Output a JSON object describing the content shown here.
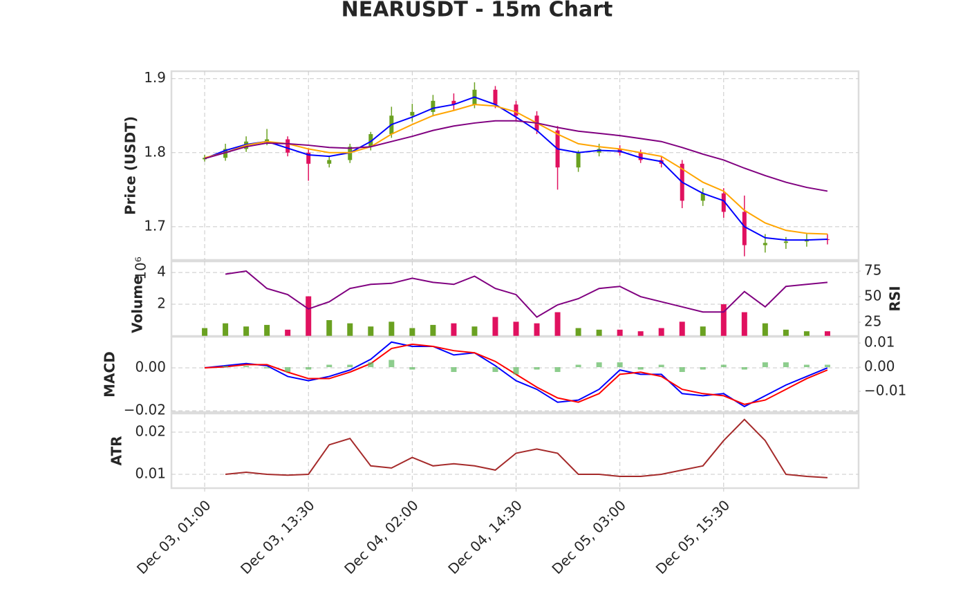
{
  "chart_data": [
    {
      "type": "candlestick",
      "title": "NEARUSDT - 15m Chart",
      "ylabel": "Price (USDT)",
      "x": [
        0,
        10,
        20,
        30,
        40,
        50,
        60,
        70,
        80,
        90,
        100,
        110,
        120,
        130,
        140,
        150,
        160,
        170,
        180,
        190,
        200,
        210,
        220,
        230,
        240,
        250,
        260,
        270,
        280,
        290,
        300
      ],
      "open": [
        1.791,
        1.793,
        1.805,
        1.815,
        1.818,
        1.8,
        1.785,
        1.79,
        1.808,
        1.825,
        1.85,
        1.855,
        1.87,
        1.865,
        1.885,
        1.865,
        1.85,
        1.83,
        1.78,
        1.8,
        1.805,
        1.8,
        1.79,
        1.785,
        1.735,
        1.745,
        1.72,
        1.675,
        1.678,
        1.68,
        1.683
      ],
      "high": [
        1.797,
        1.812,
        1.822,
        1.832,
        1.822,
        1.806,
        1.796,
        1.812,
        1.828,
        1.862,
        1.866,
        1.878,
        1.88,
        1.895,
        1.89,
        1.87,
        1.856,
        1.836,
        1.803,
        1.812,
        1.81,
        1.804,
        1.795,
        1.79,
        1.752,
        1.752,
        1.742,
        1.69,
        1.686,
        1.69,
        1.69
      ],
      "low": [
        1.788,
        1.789,
        1.801,
        1.81,
        1.795,
        1.762,
        1.78,
        1.786,
        1.803,
        1.82,
        1.842,
        1.849,
        1.858,
        1.86,
        1.86,
        1.842,
        1.825,
        1.75,
        1.774,
        1.795,
        1.796,
        1.786,
        1.78,
        1.725,
        1.728,
        1.712,
        1.66,
        1.665,
        1.67,
        1.673,
        1.676
      ],
      "close": [
        1.793,
        1.805,
        1.815,
        1.818,
        1.8,
        1.785,
        1.79,
        1.808,
        1.825,
        1.85,
        1.855,
        1.87,
        1.865,
        1.885,
        1.865,
        1.85,
        1.83,
        1.78,
        1.8,
        1.805,
        1.8,
        1.79,
        1.785,
        1.735,
        1.745,
        1.72,
        1.675,
        1.678,
        1.68,
        1.683,
        1.682
      ],
      "up_color": "#6aa121",
      "down_color": "#e0115f",
      "series": [
        {
          "color": "#0000ff",
          "values": [
            1.792,
            1.803,
            1.811,
            1.815,
            1.806,
            1.797,
            1.795,
            1.8,
            1.815,
            1.838,
            1.848,
            1.86,
            1.865,
            1.875,
            1.865,
            1.848,
            1.83,
            1.805,
            1.8,
            1.803,
            1.802,
            1.793,
            1.788,
            1.76,
            1.745,
            1.735,
            1.7,
            1.685,
            1.682,
            1.682,
            1.683
          ]
        },
        {
          "color": "#ffa500",
          "values": [
            1.793,
            1.8,
            1.81,
            1.815,
            1.812,
            1.805,
            1.8,
            1.8,
            1.808,
            1.825,
            1.838,
            1.85,
            1.857,
            1.865,
            1.863,
            1.855,
            1.84,
            1.825,
            1.812,
            1.808,
            1.805,
            1.8,
            1.795,
            1.778,
            1.76,
            1.748,
            1.722,
            1.705,
            1.695,
            1.691,
            1.69
          ]
        },
        {
          "color": "#800080",
          "values": [
            1.792,
            1.8,
            1.808,
            1.813,
            1.812,
            1.81,
            1.807,
            1.806,
            1.808,
            1.815,
            1.822,
            1.83,
            1.836,
            1.84,
            1.843,
            1.843,
            1.84,
            1.834,
            1.829,
            1.826,
            1.823,
            1.819,
            1.815,
            1.807,
            1.798,
            1.79,
            1.779,
            1.769,
            1.76,
            1.753,
            1.748
          ]
        }
      ],
      "ylim": [
        1.655,
        1.91
      ],
      "yticks": [
        1.7,
        1.8,
        1.9
      ],
      "grid": true
    },
    {
      "type": "bar",
      "ylabel": "Volume",
      "y_offset_label": "10⁶",
      "y2label": "RSI",
      "values": [
        0.5,
        0.8,
        0.6,
        0.7,
        0.4,
        2.5,
        1.0,
        0.8,
        0.6,
        0.9,
        0.5,
        0.7,
        0.8,
        0.6,
        1.2,
        0.9,
        0.8,
        1.5,
        0.5,
        0.4,
        0.4,
        0.3,
        0.5,
        0.9,
        0.6,
        2.0,
        1.5,
        0.8,
        0.4,
        0.3,
        0.3
      ],
      "up_color": "#6aa121",
      "down_color": "#e0115f",
      "series": [
        {
          "color": "#800080",
          "axis": "y2",
          "values": [
            null,
            72,
            75,
            58,
            52,
            38,
            45,
            58,
            62,
            63,
            68,
            64,
            62,
            70,
            58,
            52,
            30,
            42,
            48,
            58,
            60,
            50,
            45,
            40,
            35,
            35,
            55,
            40,
            60,
            62,
            64
          ]
        }
      ],
      "ylim": [
        0,
        4.7
      ],
      "yticks": [
        2,
        4
      ],
      "y2lim": [
        11.5,
        84.5
      ],
      "y2ticks": [
        25,
        50,
        75
      ],
      "grid": true
    },
    {
      "type": "line",
      "ylabel": "MACD",
      "series": [
        {
          "color": "#0000ff",
          "values": [
            0,
            0.001,
            0.002,
            0.001,
            -0.004,
            -0.006,
            -0.004,
            -0.001,
            0.004,
            0.012,
            0.01,
            0.01,
            0.006,
            0.007,
            0.001,
            -0.006,
            -0.01,
            -0.016,
            -0.015,
            -0.01,
            -0.001,
            -0.003,
            -0.003,
            -0.012,
            -0.013,
            -0.012,
            -0.018,
            -0.013,
            -0.008,
            -0.004,
            0
          ]
        },
        {
          "color": "#ff0000",
          "values": [
            0,
            0.0005,
            0.0015,
            0.0015,
            -0.002,
            -0.005,
            -0.005,
            -0.002,
            0.002,
            0.009,
            0.011,
            0.01,
            0.008,
            0.007,
            0.003,
            -0.003,
            -0.009,
            -0.014,
            -0.016,
            -0.012,
            -0.003,
            -0.002,
            -0.004,
            -0.01,
            -0.012,
            -0.013,
            -0.017,
            -0.015,
            -0.01,
            -0.005,
            -0.001
          ]
        },
        {
          "color": "#5cb85c",
          "axis": "y2",
          "type": "bar",
          "values": [
            0,
            0.0005,
            0.0005,
            -0.0005,
            -0.002,
            -0.001,
            0.001,
            0.001,
            0.002,
            0.003,
            -0.001,
            0,
            -0.002,
            0,
            -0.002,
            -0.003,
            -0.001,
            -0.002,
            0.001,
            0.002,
            0.002,
            -0.001,
            0.001,
            -0.002,
            -0.001,
            0.001,
            -0.001,
            0.002,
            0.002,
            0.001,
            0.001
          ]
        }
      ],
      "ylim": [
        -0.0206,
        0.0145
      ],
      "yticks": [
        {
          "value": 0,
          "label": "0.00"
        },
        {
          "value": -0.02,
          "label": "−0.02"
        }
      ],
      "y2lim": [
        -0.0186,
        0.0126
      ],
      "y2ticks": [
        0.01,
        {
          "value": 0,
          "label": "0.00"
        },
        {
          "value": -0.01,
          "label": "−0.01"
        }
      ],
      "grid": true
    },
    {
      "type": "line",
      "ylabel": "ATR",
      "series": [
        {
          "color": "#a52a2a",
          "values": [
            null,
            0.01,
            0.0105,
            0.01,
            0.0098,
            0.01,
            0.017,
            0.0185,
            0.012,
            0.0115,
            0.014,
            0.012,
            0.0125,
            0.012,
            0.011,
            0.015,
            0.016,
            0.015,
            0.01,
            0.01,
            0.0095,
            0.0095,
            0.01,
            0.011,
            0.012,
            0.018,
            0.023,
            0.018,
            0.01,
            0.0095,
            0.0092
          ]
        }
      ],
      "ylim": [
        0.00672,
        0.02443
      ],
      "yticks": [
        0.02,
        0.01
      ],
      "xlim": [
        -16,
        315
      ],
      "xticks": [
        {
          "value": 0,
          "label": "Dec 03, 01:00"
        },
        {
          "value": 50,
          "label": "Dec 03, 13:30"
        },
        {
          "value": 100,
          "label": "Dec 04, 02:00"
        },
        {
          "value": 150,
          "label": "Dec 04, 14:30"
        },
        {
          "value": 200,
          "label": "Dec 05, 03:00"
        },
        {
          "value": 250,
          "label": "Dec 05, 15:30"
        }
      ],
      "grid": true
    }
  ]
}
